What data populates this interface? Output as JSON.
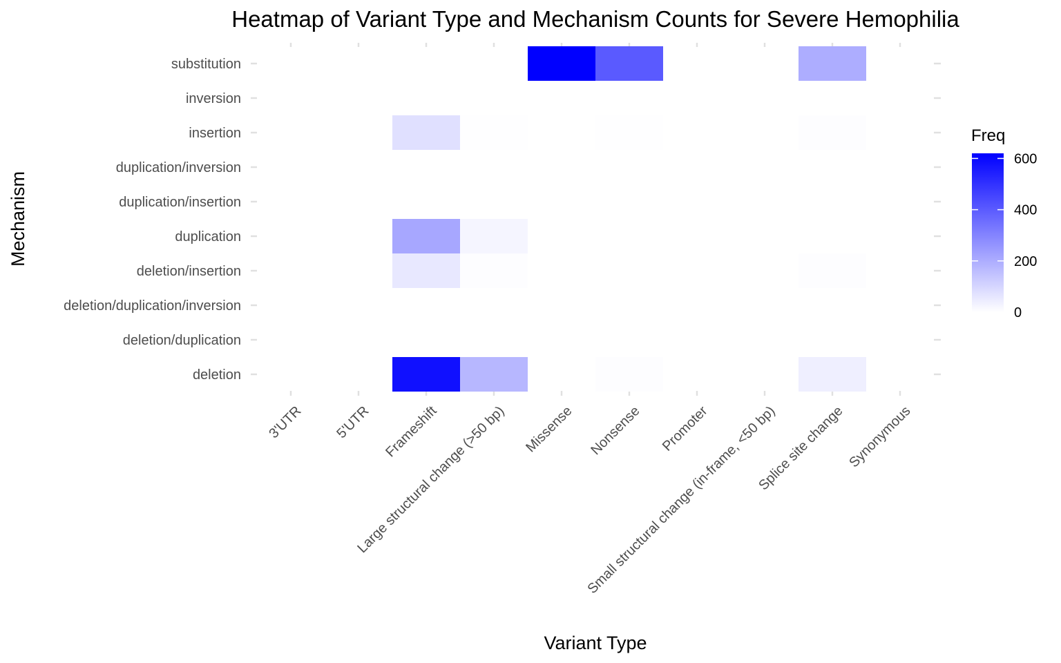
{
  "chart_data": {
    "type": "heatmap",
    "title": "Heatmap of Variant Type and Mechanism Counts for Severe Hemophilia",
    "xlabel": "Variant Type",
    "ylabel": "Mechanism",
    "x_categories": [
      "3'UTR",
      "5'UTR",
      "Frameshift",
      "Large structural change (>50 bp)",
      "Missense",
      "Nonsense",
      "Promoter",
      "Small structural change (in-frame, <50 bp)",
      "Splice site change",
      "Synonymous"
    ],
    "y_categories": [
      "deletion",
      "deletion/duplication",
      "deletion/duplication/inversion",
      "deletion/insertion",
      "duplication",
      "duplication/insertion",
      "duplication/inversion",
      "insertion",
      "inversion",
      "substitution"
    ],
    "cells": [
      {
        "x": "Frameshift",
        "y": "deletion",
        "value": 580
      },
      {
        "x": "Large structural change (>50 bp)",
        "y": "deletion",
        "value": 175
      },
      {
        "x": "Nonsense",
        "y": "deletion",
        "value": 5
      },
      {
        "x": "Splice site change",
        "y": "deletion",
        "value": 40
      },
      {
        "x": "Frameshift",
        "y": "deletion/insertion",
        "value": 55
      },
      {
        "x": "Large structural change (>50 bp)",
        "y": "deletion/insertion",
        "value": 5
      },
      {
        "x": "Splice site change",
        "y": "deletion/insertion",
        "value": 5
      },
      {
        "x": "Frameshift",
        "y": "duplication",
        "value": 215
      },
      {
        "x": "Large structural change (>50 bp)",
        "y": "duplication",
        "value": 25
      },
      {
        "x": "Frameshift",
        "y": "insertion",
        "value": 75
      },
      {
        "x": "Large structural change (>50 bp)",
        "y": "insertion",
        "value": 3
      },
      {
        "x": "Nonsense",
        "y": "insertion",
        "value": 2
      },
      {
        "x": "Splice site change",
        "y": "insertion",
        "value": 5
      },
      {
        "x": "Missense",
        "y": "substitution",
        "value": 620
      },
      {
        "x": "Nonsense",
        "y": "substitution",
        "value": 400
      },
      {
        "x": "Splice site change",
        "y": "substitution",
        "value": 200
      }
    ],
    "legend": {
      "title": "Freq",
      "placement": "right",
      "min": 0,
      "max": 620,
      "ticks": [
        0,
        200,
        400,
        600
      ],
      "low_color": "#ffffff",
      "high_color": "#0000ff"
    },
    "grid": false
  }
}
